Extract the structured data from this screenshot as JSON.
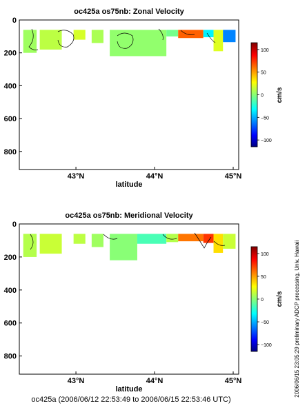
{
  "chart_data": [
    {
      "type": "heatmap",
      "title": "oc425a os75nb: Zonal Velocity",
      "xlabel": "latitude",
      "ylabel": "",
      "xlim": [
        42.28,
        45.07
      ],
      "ylim": [
        910,
        0
      ],
      "x_ticks": [
        43,
        44,
        45
      ],
      "x_tick_labels": [
        "43°N",
        "44°N",
        "45°N"
      ],
      "y_ticks": [
        0,
        200,
        400,
        600,
        800
      ],
      "y_tick_labels": [
        "0",
        "200",
        "400",
        "600",
        "800"
      ],
      "colorbar": {
        "label": "cm/s",
        "range": [
          -115,
          115
        ],
        "ticks": [
          -100,
          -50,
          0,
          50,
          100
        ],
        "tick_labels": [
          "−100",
          "−50",
          "0",
          "50",
          "100"
        ]
      },
      "data_depth_range": [
        60,
        220
      ],
      "segments": [
        {
          "lat_start": 42.33,
          "lat_end": 42.5,
          "bottom_depth": 200,
          "velocity": 5
        },
        {
          "lat_start": 42.54,
          "lat_end": 42.82,
          "bottom_depth": 180,
          "velocity": 12
        },
        {
          "lat_start": 42.97,
          "lat_end": 43.12,
          "bottom_depth": 120,
          "velocity": 18
        },
        {
          "lat_start": 43.2,
          "lat_end": 43.35,
          "bottom_depth": 140,
          "velocity": 8
        },
        {
          "lat_start": 43.43,
          "lat_end": 44.15,
          "bottom_depth": 220,
          "velocity": 2
        },
        {
          "lat_start": 44.15,
          "lat_end": 44.3,
          "bottom_depth": 100,
          "velocity": -5
        },
        {
          "lat_start": 44.3,
          "lat_end": 44.62,
          "bottom_depth": 110,
          "velocity": 65
        },
        {
          "lat_start": 44.62,
          "lat_end": 44.75,
          "bottom_depth": 105,
          "velocity": -35
        },
        {
          "lat_start": 44.75,
          "lat_end": 44.87,
          "bottom_depth": 190,
          "velocity": 20
        },
        {
          "lat_start": 44.87,
          "lat_end": 45.03,
          "bottom_depth": 135,
          "velocity": -60
        }
      ],
      "grid": false,
      "legend": "none"
    },
    {
      "type": "heatmap",
      "title": "oc425a os75nb: Meridional Velocity",
      "xlabel": "latitude",
      "ylabel": "",
      "xlim": [
        42.28,
        45.07
      ],
      "ylim": [
        910,
        0
      ],
      "x_ticks": [
        43,
        44,
        45
      ],
      "x_tick_labels": [
        "43°N",
        "44°N",
        "45°N"
      ],
      "y_ticks": [
        0,
        200,
        400,
        600,
        800
      ],
      "y_tick_labels": [
        "0",
        "200",
        "400",
        "600",
        "800"
      ],
      "colorbar": {
        "label": "cm/s",
        "range": [
          -115,
          115
        ],
        "ticks": [
          -100,
          -50,
          0,
          50,
          100
        ],
        "tick_labels": [
          "−100",
          "−50",
          "0",
          "50",
          "100"
        ]
      },
      "data_depth_range": [
        60,
        220
      ],
      "segments": [
        {
          "lat_start": 42.33,
          "lat_end": 42.5,
          "bottom_depth": 200,
          "velocity": 10
        },
        {
          "lat_start": 42.54,
          "lat_end": 42.82,
          "bottom_depth": 180,
          "velocity": 15
        },
        {
          "lat_start": 42.97,
          "lat_end": 43.12,
          "bottom_depth": 120,
          "velocity": 12
        },
        {
          "lat_start": 43.2,
          "lat_end": 43.35,
          "bottom_depth": 140,
          "velocity": 5
        },
        {
          "lat_start": 43.43,
          "lat_end": 43.78,
          "bottom_depth": 220,
          "velocity": 0
        },
        {
          "lat_start": 43.78,
          "lat_end": 44.15,
          "bottom_depth": 120,
          "velocity": -15
        },
        {
          "lat_start": 44.15,
          "lat_end": 44.3,
          "bottom_depth": 110,
          "velocity": 10
        },
        {
          "lat_start": 44.3,
          "lat_end": 44.62,
          "bottom_depth": 105,
          "velocity": 60
        },
        {
          "lat_start": 44.62,
          "lat_end": 44.75,
          "bottom_depth": 115,
          "velocity": 75
        },
        {
          "lat_start": 44.75,
          "lat_end": 44.87,
          "bottom_depth": 175,
          "velocity": 35
        },
        {
          "lat_start": 44.87,
          "lat_end": 45.03,
          "bottom_depth": 150,
          "velocity": 15
        }
      ],
      "grid": false,
      "legend": "none"
    }
  ],
  "footer_caption": "oc425a (2006/06/12 22:53:49 to 2006/06/15 22:53:46 UTC)",
  "side_note": "preliminary ADCP processing,  Univ. Hawaii",
  "side_timestamp": "2006/06/15 23:05:29"
}
